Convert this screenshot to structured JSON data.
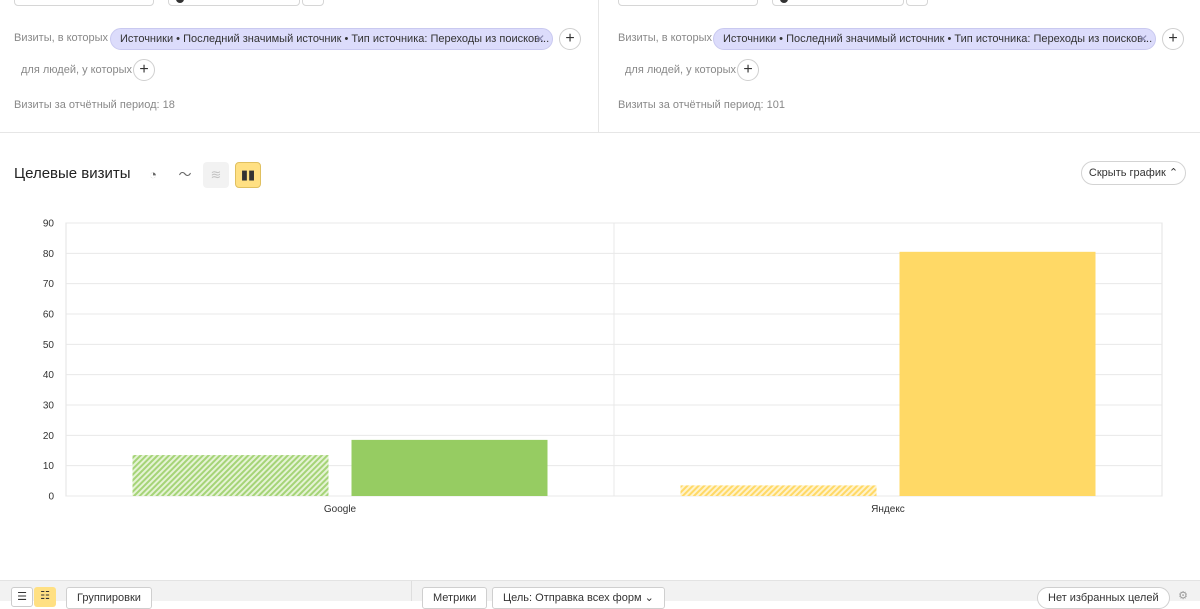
{
  "segments": [
    {
      "visits_label": "Визиты, в которых",
      "filter_chip": "Источники • Последний значимый источник • Тип источника: Переходы из поисков...",
      "people_label": "для людей, у которых",
      "period_text": "Визиты за отчётный период: 18"
    },
    {
      "visits_label": "Визиты, в которых",
      "filter_chip": "Источники • Последний значимый источник • Тип источника: Переходы из поисков...",
      "people_label": "для людей, у которых",
      "period_text": "Визиты за отчётный период: 101"
    }
  ],
  "chart_header": {
    "title": "Целевые визиты",
    "hide_button": "Скрыть график",
    "icons": [
      "pie-chart-icon",
      "line-chart-icon",
      "stacked-chart-icon",
      "bar-chart-icon"
    ],
    "active_view": "bar"
  },
  "chart_data": {
    "type": "bar",
    "categories": [
      "Google",
      "Яндекс"
    ],
    "series": [
      {
        "values": [
          13.5,
          3.5
        ],
        "style": "hatched"
      },
      {
        "values": [
          18.5,
          80.5
        ],
        "style": "solid"
      }
    ],
    "category_colors": {
      "Google": [
        "#b6dc8f",
        "#96cc62"
      ],
      "Яндекс": [
        "#ffe599",
        "#ffd966"
      ]
    },
    "yticks": [
      0,
      10,
      20,
      30,
      40,
      50,
      60,
      70,
      80,
      90
    ],
    "ylim": [
      0,
      90
    ],
    "grid": true
  },
  "bottom_bar": {
    "groupings_label": "Группировки",
    "metrics_label": "Метрики",
    "goal_select": "Цель: Отправка всех форм",
    "favorites_label": "Нет избранных целей"
  }
}
